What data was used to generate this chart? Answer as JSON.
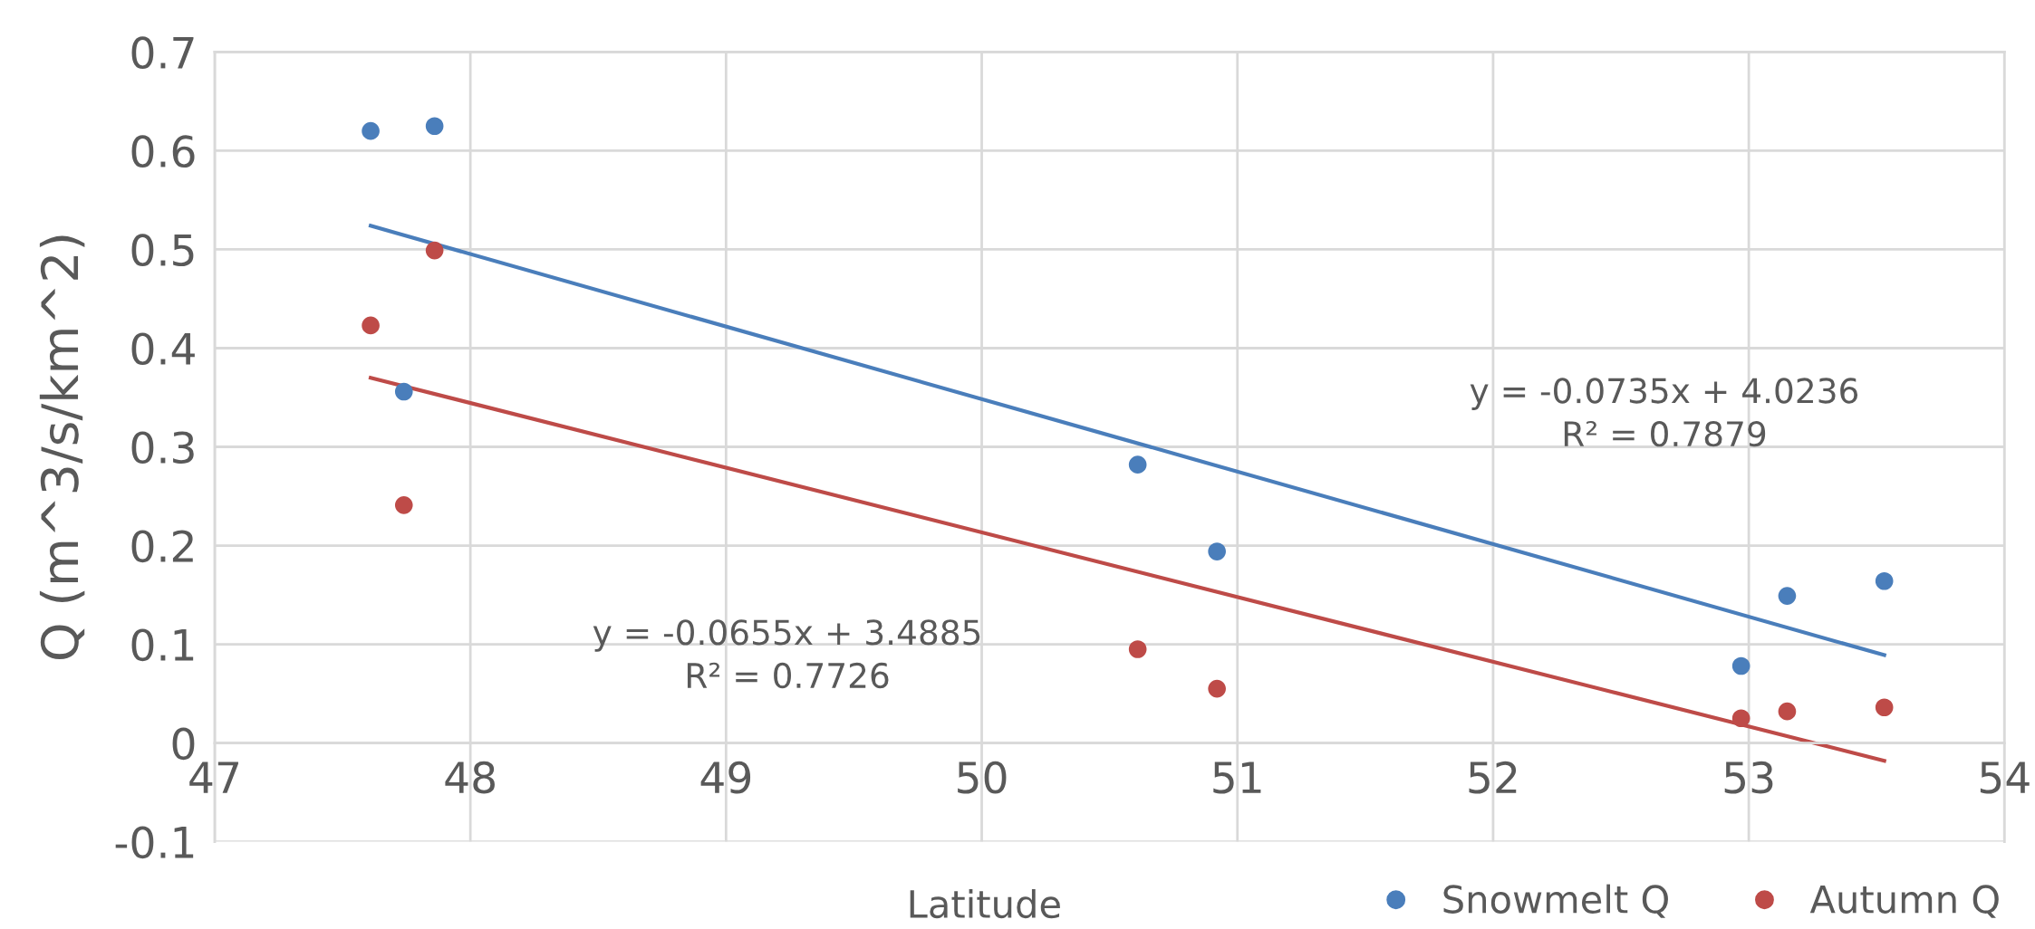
{
  "chart_data": {
    "type": "scatter",
    "xlabel": "Latitude",
    "ylabel": "Q (m^3/s/km^2)",
    "xlim": [
      47,
      54
    ],
    "xticks": [
      47,
      48,
      49,
      50,
      51,
      52,
      53,
      54
    ],
    "ylim": [
      -0.1,
      0.7
    ],
    "yticks": [
      -0.1,
      0,
      0.1,
      0.2,
      0.3,
      0.4,
      0.5,
      0.6,
      0.7
    ],
    "grid": true,
    "legend": "bottom right",
    "marker": "circle",
    "series": [
      {
        "name": "Snowmelt Q",
        "color": "#4a7ebb",
        "x": [
          47.61,
          47.86,
          47.74,
          50.61,
          50.92,
          52.97,
          53.15,
          53.53
        ],
        "values": [
          0.62,
          0.625,
          0.356,
          0.282,
          0.194,
          0.078,
          0.149,
          0.164
        ]
      },
      {
        "name": "Autumn Q",
        "color": "#be4b48",
        "x": [
          47.61,
          47.86,
          47.74,
          50.61,
          50.92,
          52.97,
          53.15,
          53.53
        ],
        "values": [
          0.423,
          0.499,
          0.241,
          0.095,
          0.055,
          0.025,
          0.032,
          0.036
        ]
      },
      {
        "type": "line",
        "marker": "none",
        "color": "#4a7ebb",
        "x": [
          47.61,
          53.53
        ],
        "values": [
          0.524,
          0.089
        ]
      },
      {
        "type": "line",
        "marker": "none",
        "color": "#be4b48",
        "x": [
          47.61,
          53.53
        ],
        "values": [
          0.37,
          -0.018
        ]
      }
    ],
    "annotations": [
      "y = -0.0735x + 4.0236\nR² = 0.7879",
      "y = -0.0655x + 3.4885\nR² = 0.7726"
    ]
  }
}
